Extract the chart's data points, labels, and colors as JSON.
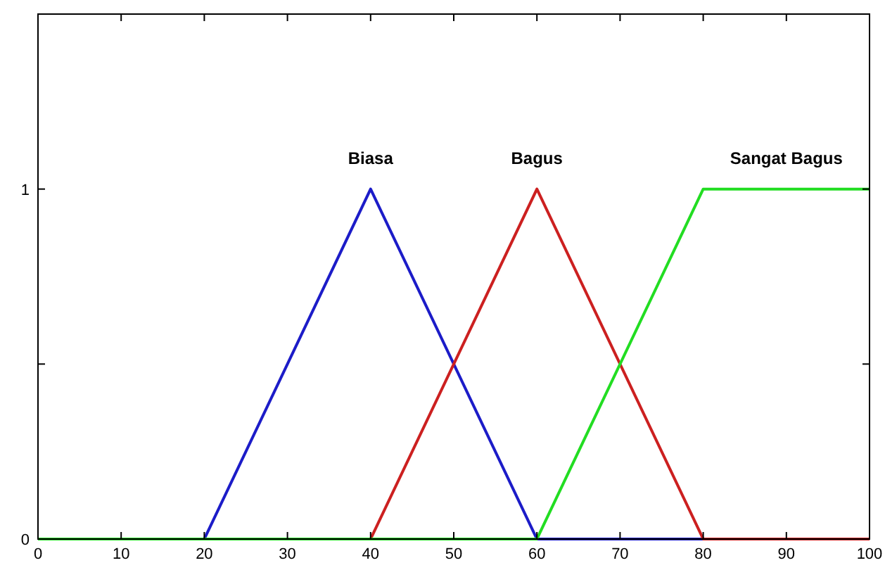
{
  "chart_data": {
    "type": "line",
    "xlim": [
      0,
      100
    ],
    "ylim": [
      0,
      1.5
    ],
    "xticks": [
      0,
      10,
      20,
      30,
      40,
      50,
      60,
      70,
      80,
      90,
      100
    ],
    "yticks": [
      0,
      {
        "value": 0.5,
        "label": null
      },
      1
    ],
    "grid": false,
    "legend": false,
    "marker": "none",
    "line_style": "solid",
    "series": [
      {
        "name": "Biasa",
        "color": "#1c1cc8",
        "x": [
          0,
          20,
          40,
          60,
          100
        ],
        "values": [
          0,
          0,
          1,
          0,
          0
        ]
      },
      {
        "name": "Bagus",
        "color": "#cc2020",
        "x": [
          0,
          40,
          60,
          80,
          100
        ],
        "values": [
          0,
          0,
          1,
          0,
          0
        ]
      },
      {
        "name": "Sangat Bagus",
        "color": "#22dd22",
        "x": [
          0,
          60,
          80,
          100
        ],
        "values": [
          0,
          0,
          1,
          1
        ]
      }
    ]
  }
}
